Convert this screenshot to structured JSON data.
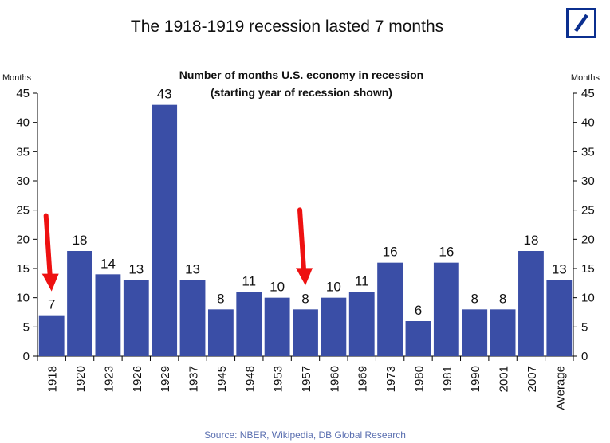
{
  "header": {
    "title": "The 1918-1919 recession lasted 7 months",
    "brand_color": "#0b2f8f"
  },
  "footer": {
    "source": "Source: NBER, Wikipedia, DB Global Research"
  },
  "chart_data": {
    "type": "bar",
    "title": "Number of months U.S. economy in recession",
    "subtitle": "(starting year of recession shown)",
    "ylabel_left": "Months",
    "ylabel_right": "Months",
    "ylim": [
      0,
      45
    ],
    "yticks": [
      0,
      5,
      10,
      15,
      20,
      25,
      30,
      35,
      40,
      45
    ],
    "categories": [
      "1918",
      "1920",
      "1923",
      "1926",
      "1929",
      "1937",
      "1945",
      "1948",
      "1953",
      "1957",
      "1960",
      "1969",
      "1973",
      "1980",
      "1981",
      "1990",
      "2001",
      "2007",
      "Average"
    ],
    "values": [
      7,
      18,
      14,
      13,
      43,
      13,
      8,
      11,
      10,
      8,
      10,
      11,
      16,
      6,
      16,
      8,
      8,
      18,
      13
    ],
    "bar_color": "#3a4ea6",
    "arrow_color": "#ee1111",
    "highlighted_categories": [
      "1918",
      "1957"
    ],
    "grid": false,
    "legend": "none"
  }
}
